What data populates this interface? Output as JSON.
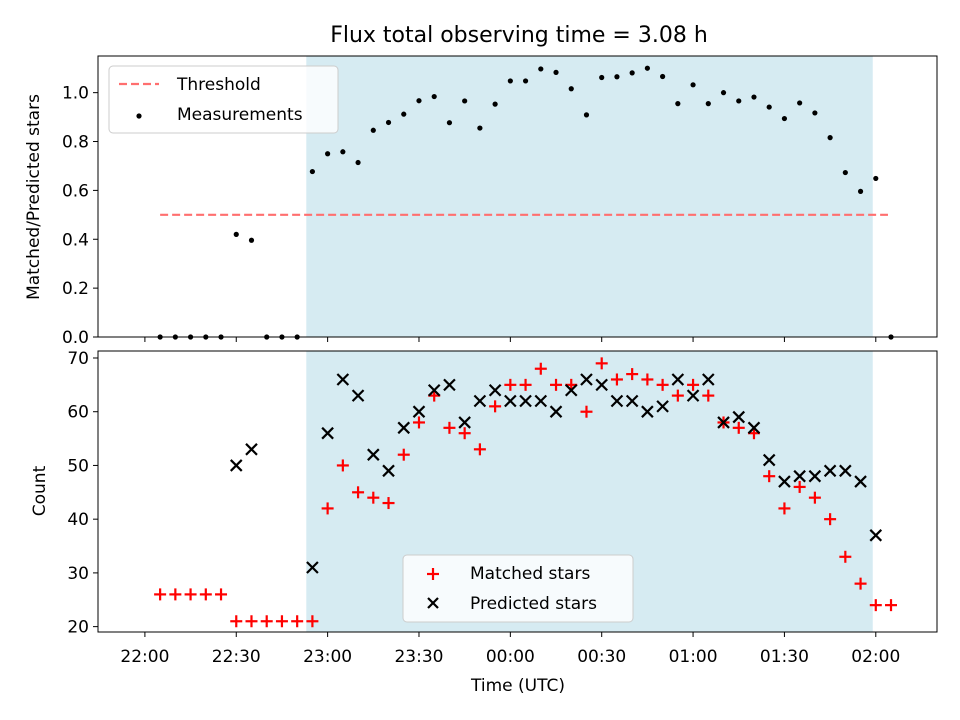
{
  "title": "Flux total observing time = 3.08 h",
  "chart_data": [
    {
      "type": "scatter",
      "xlabel": "",
      "ylabel": "Matched/Predicted stars",
      "ylim": [
        0,
        1.15
      ],
      "yticks": [
        "0.0",
        "0.2",
        "0.4",
        "0.6",
        "0.8",
        "1.0"
      ],
      "shaded_interval": {
        "start_min": 53,
        "end_min": 239,
        "color": "#add8e6"
      },
      "threshold": {
        "name": "Threshold",
        "value": 0.5,
        "x_start_min": 5,
        "x_end_min": 244,
        "color": "#ff6f6f"
      },
      "legend": {
        "position": "top-left",
        "entries": [
          "Threshold",
          "Measurements"
        ]
      },
      "series": [
        {
          "name": "Measurements",
          "marker": "dot",
          "color": "#000000",
          "x_min": [
            5,
            10,
            15,
            20,
            25,
            30,
            35,
            40,
            45,
            50,
            55,
            60,
            65,
            70,
            75,
            80,
            85,
            90,
            95,
            100,
            105,
            110,
            115,
            120,
            125,
            130,
            135,
            140,
            145,
            150,
            155,
            160,
            165,
            170,
            175,
            180,
            185,
            190,
            195,
            200,
            205,
            210,
            215,
            220,
            225,
            230,
            235,
            240,
            245
          ],
          "y": [
            0,
            0,
            0,
            0,
            0,
            0.42,
            0.396,
            0,
            0,
            0,
            0.677,
            0.75,
            0.758,
            0.714,
            0.846,
            0.878,
            0.912,
            0.967,
            0.984,
            0.877,
            0.966,
            0.855,
            0.953,
            1.048,
            1.048,
            1.097,
            1.083,
            1.016,
            0.909,
            1.062,
            1.065,
            1.081,
            1.1,
            1.066,
            0.955,
            1.032,
            0.955,
            1.0,
            0.966,
            0.982,
            0.941,
            0.894,
            0.958,
            0.917,
            0.816,
            0.673,
            0.596,
            0.649,
            0
          ]
        }
      ]
    },
    {
      "type": "scatter",
      "xlabel": "Time (UTC)",
      "ylabel": "Count",
      "ylim": [
        19,
        71.3
      ],
      "yticks": [
        "20",
        "30",
        "40",
        "50",
        "60",
        "70"
      ],
      "xticks": [
        "22:00",
        "22:30",
        "23:00",
        "23:30",
        "00:00",
        "00:30",
        "01:00",
        "01:30",
        "02:00"
      ],
      "xtick_min": [
        0,
        30,
        60,
        90,
        120,
        150,
        180,
        210,
        240
      ],
      "shaded_interval": {
        "start_min": 53,
        "end_min": 239,
        "color": "#add8e6"
      },
      "legend": {
        "position": "bottom-center",
        "entries": [
          "Matched stars",
          "Predicted stars"
        ]
      },
      "series": [
        {
          "name": "Matched stars",
          "marker": "plus",
          "color": "#ff0000",
          "x_min": [
            5,
            10,
            15,
            20,
            25,
            30,
            35,
            40,
            45,
            50,
            55,
            60,
            65,
            70,
            75,
            80,
            85,
            90,
            95,
            100,
            105,
            110,
            115,
            120,
            125,
            130,
            135,
            140,
            145,
            150,
            155,
            160,
            165,
            170,
            175,
            180,
            185,
            190,
            195,
            200,
            205,
            210,
            215,
            220,
            225,
            230,
            235,
            240,
            245
          ],
          "y": [
            26,
            26,
            26,
            26,
            26,
            21,
            21,
            21,
            21,
            21,
            21,
            42,
            50,
            45,
            44,
            43,
            52,
            58,
            63,
            57,
            56,
            53,
            61,
            65,
            65,
            68,
            65,
            65,
            60,
            69,
            66,
            67,
            66,
            65,
            63,
            65,
            63,
            58,
            57,
            56,
            48,
            42,
            46,
            44,
            40,
            33,
            28,
            24,
            24
          ]
        },
        {
          "name": "Predicted stars",
          "marker": "x",
          "color": "#000000",
          "x_min": [
            30,
            35,
            55,
            60,
            65,
            70,
            75,
            80,
            85,
            90,
            95,
            100,
            105,
            110,
            115,
            120,
            125,
            130,
            135,
            140,
            145,
            150,
            155,
            160,
            165,
            170,
            175,
            180,
            185,
            190,
            195,
            200,
            205,
            210,
            215,
            220,
            225,
            230,
            235,
            240
          ],
          "y": [
            50,
            53,
            31,
            56,
            66,
            63,
            52,
            49,
            57,
            60,
            64,
            65,
            58,
            62,
            64,
            62,
            62,
            62,
            60,
            64,
            66,
            65,
            62,
            62,
            60,
            61,
            66,
            63,
            66,
            58,
            59,
            57,
            51,
            47,
            48,
            48,
            49,
            49,
            47,
            37
          ]
        }
      ]
    }
  ]
}
